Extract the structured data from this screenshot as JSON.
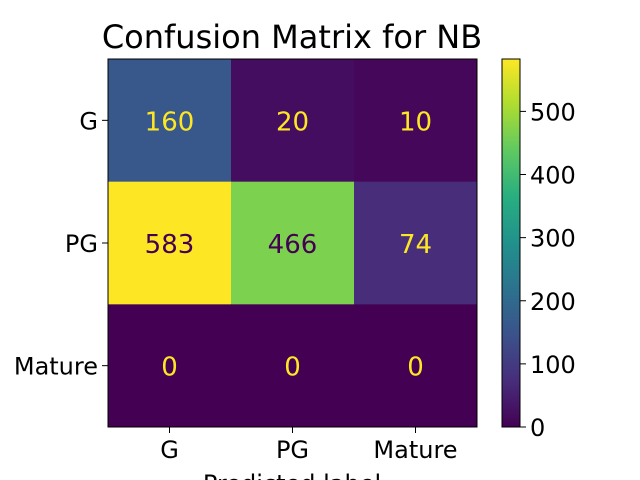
{
  "chart_data": {
    "type": "heatmap",
    "title": "Confusion Matrix for NB",
    "xlabel": "Predicted label",
    "ylabel": "",
    "x_categories": [
      "G",
      "PG",
      "Mature"
    ],
    "y_categories": [
      "G",
      "PG",
      "Mature"
    ],
    "values": [
      [
        160,
        20,
        10
      ],
      [
        583,
        466,
        74
      ],
      [
        0,
        0,
        0
      ]
    ],
    "colormap": "viridis",
    "colorbar": {
      "range": [
        0,
        583
      ],
      "ticks": [
        "0",
        "100",
        "200",
        "300",
        "400",
        "500"
      ]
    },
    "annotation_colors": {
      "light": "#fde725",
      "dark": "#440154"
    },
    "grid": false
  }
}
